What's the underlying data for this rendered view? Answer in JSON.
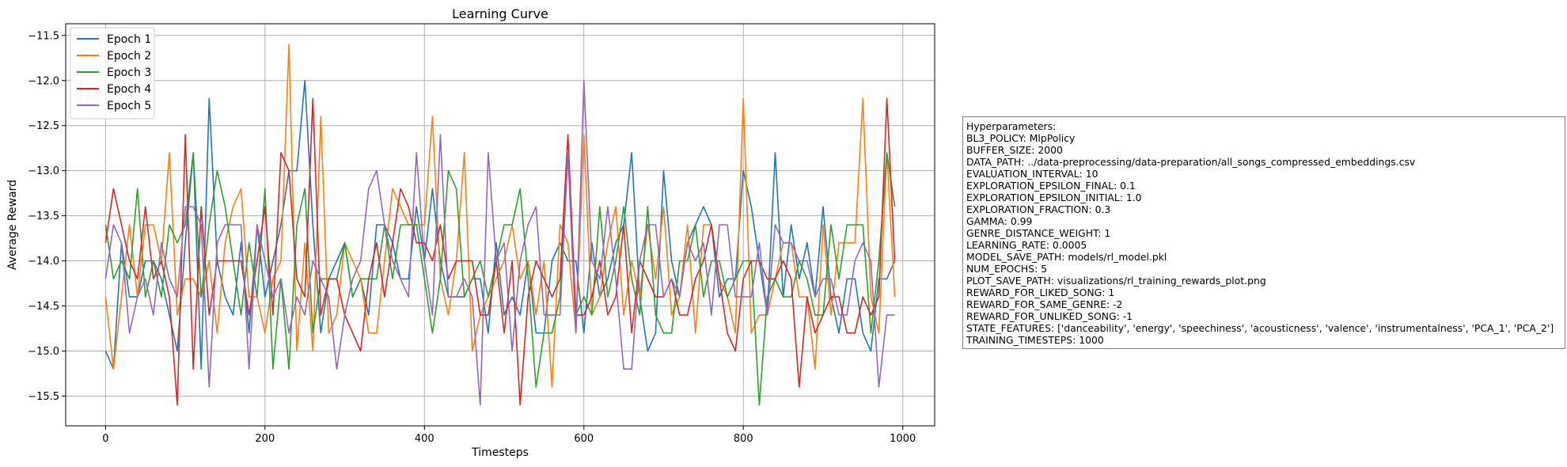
{
  "chart_data": {
    "type": "line",
    "title": "Learning Curve",
    "xlabel": "Timesteps",
    "ylabel": "Average Reward",
    "xlim": [
      -50,
      1040
    ],
    "ylim": [
      -15.83,
      -11.37
    ],
    "xticks": [
      0,
      200,
      400,
      600,
      800,
      1000
    ],
    "yticks": [
      -15.5,
      -15.0,
      -14.5,
      -14.0,
      -13.5,
      -13.0,
      -12.5,
      -12.0,
      -11.5
    ],
    "xtick_labels": [
      "0",
      "200",
      "400",
      "600",
      "800",
      "1000"
    ],
    "ytick_labels": [
      "−15.5",
      "−15.0",
      "−14.5",
      "−14.0",
      "−13.5",
      "−13.0",
      "−12.5",
      "−12.0",
      "−11.5"
    ],
    "grid": true,
    "legend_position": "top-left",
    "x": [
      0,
      10,
      20,
      30,
      40,
      50,
      60,
      70,
      80,
      90,
      100,
      110,
      120,
      130,
      140,
      150,
      160,
      170,
      180,
      190,
      200,
      210,
      220,
      230,
      240,
      250,
      260,
      270,
      280,
      290,
      300,
      310,
      320,
      330,
      340,
      350,
      360,
      370,
      380,
      390,
      400,
      410,
      420,
      430,
      440,
      450,
      460,
      470,
      480,
      490,
      500,
      510,
      520,
      530,
      540,
      550,
      560,
      570,
      580,
      590,
      600,
      610,
      620,
      630,
      640,
      650,
      660,
      670,
      680,
      690,
      700,
      710,
      720,
      730,
      740,
      750,
      760,
      770,
      780,
      790,
      800,
      810,
      820,
      830,
      840,
      850,
      860,
      870,
      880,
      890,
      900,
      910,
      920,
      930,
      940,
      950,
      960,
      970,
      980,
      990
    ],
    "series": [
      {
        "name": "Epoch 1",
        "color": "#1f77b4",
        "values": [
          -15.0,
          -15.2,
          -13.8,
          -14.4,
          -14.4,
          -14.0,
          -14.0,
          -14.2,
          -14.6,
          -15.0,
          -13.8,
          -12.8,
          -15.2,
          -12.2,
          -14.0,
          -14.4,
          -14.6,
          -13.8,
          -14.8,
          -13.6,
          -14.4,
          -14.0,
          -13.6,
          -13.0,
          -13.0,
          -12.0,
          -13.6,
          -14.8,
          -14.2,
          -14.0,
          -13.8,
          -14.4,
          -14.2,
          -14.6,
          -13.6,
          -13.6,
          -13.8,
          -14.2,
          -14.2,
          -13.4,
          -14.0,
          -13.2,
          -14.0,
          -14.4,
          -14.4,
          -14.4,
          -14.2,
          -14.2,
          -14.8,
          -13.8,
          -14.6,
          -14.4,
          -14.6,
          -14.0,
          -14.8,
          -14.8,
          -14.0,
          -13.8,
          -14.0,
          -14.0,
          -14.8,
          -13.8,
          -14.4,
          -14.2,
          -13.8,
          -13.6,
          -12.8,
          -14.4,
          -15.0,
          -14.8,
          -13.0,
          -14.0,
          -14.4,
          -13.8,
          -13.6,
          -13.4,
          -13.6,
          -14.4,
          -14.2,
          -14.2,
          -13.0,
          -13.4,
          -14.0,
          -14.6,
          -12.8,
          -14.4,
          -13.6,
          -14.2,
          -13.8,
          -14.4,
          -13.4,
          -14.4,
          -14.8,
          -14.2,
          -14.2,
          -14.8,
          -15.0,
          -14.2,
          -14.2,
          -14.0
        ]
      },
      {
        "name": "Epoch 2",
        "color": "#ff7f0e",
        "values": [
          -14.4,
          -15.2,
          -14.4,
          -13.6,
          -14.4,
          -13.6,
          -13.6,
          -14.0,
          -12.8,
          -14.6,
          -14.2,
          -14.2,
          -14.4,
          -14.0,
          -14.8,
          -13.8,
          -13.4,
          -13.2,
          -14.4,
          -14.4,
          -14.8,
          -14.2,
          -14.0,
          -11.6,
          -15.0,
          -13.8,
          -15.0,
          -12.4,
          -14.8,
          -14.6,
          -13.8,
          -14.0,
          -14.2,
          -14.8,
          -14.8,
          -14.0,
          -13.2,
          -13.4,
          -13.6,
          -13.6,
          -13.6,
          -12.4,
          -14.2,
          -14.6,
          -14.0,
          -12.8,
          -15.0,
          -14.6,
          -14.4,
          -14.2,
          -14.0,
          -13.6,
          -14.2,
          -14.0,
          -14.6,
          -14.0,
          -15.4,
          -13.6,
          -13.8,
          -14.8,
          -12.6,
          -14.6,
          -14.4,
          -13.8,
          -13.4,
          -14.6,
          -14.0,
          -14.4,
          -13.6,
          -14.2,
          -13.4,
          -14.6,
          -14.4,
          -13.6,
          -14.8,
          -13.6,
          -13.6,
          -14.2,
          -14.4,
          -14.8,
          -12.2,
          -14.8,
          -14.6,
          -14.6,
          -14.2,
          -13.8,
          -13.8,
          -14.4,
          -14.4,
          -15.2,
          -13.6,
          -14.6,
          -13.8,
          -13.8,
          -13.8,
          -12.2,
          -14.4,
          -14.8,
          -12.8,
          -14.4
        ]
      },
      {
        "name": "Epoch 3",
        "color": "#2ca02c",
        "values": [
          -13.6,
          -14.2,
          -14.0,
          -14.2,
          -13.2,
          -14.4,
          -14.0,
          -14.4,
          -13.6,
          -13.8,
          -13.6,
          -12.8,
          -14.4,
          -13.6,
          -13.0,
          -13.4,
          -14.0,
          -14.6,
          -13.8,
          -14.4,
          -13.2,
          -15.2,
          -14.2,
          -15.2,
          -13.6,
          -13.2,
          -14.8,
          -14.2,
          -14.2,
          -14.2,
          -13.8,
          -14.4,
          -14.2,
          -14.2,
          -14.2,
          -13.6,
          -14.2,
          -13.6,
          -13.6,
          -13.6,
          -14.2,
          -14.8,
          -14.2,
          -13.0,
          -13.2,
          -14.4,
          -14.2,
          -14.0,
          -14.4,
          -14.0,
          -13.6,
          -13.6,
          -13.2,
          -14.2,
          -15.4,
          -14.8,
          -14.8,
          -14.4,
          -12.8,
          -14.6,
          -14.4,
          -14.6,
          -13.4,
          -14.4,
          -14.0,
          -13.4,
          -14.2,
          -14.6,
          -13.4,
          -14.6,
          -14.8,
          -14.8,
          -14.0,
          -14.0,
          -13.6,
          -14.4,
          -14.0,
          -14.0,
          -14.4,
          -14.2,
          -14.0,
          -14.0,
          -15.6,
          -14.4,
          -14.2,
          -14.4,
          -14.4,
          -14.0,
          -14.2,
          -14.6,
          -14.6,
          -13.6,
          -14.2,
          -13.6,
          -13.6,
          -13.6,
          -14.8,
          -14.0,
          -12.8,
          -13.4
        ]
      },
      {
        "name": "Epoch 4",
        "color": "#d62728",
        "values": [
          -13.8,
          -13.2,
          -13.6,
          -14.0,
          -14.2,
          -13.4,
          -14.2,
          -14.0,
          -14.4,
          -15.6,
          -12.6,
          -15.2,
          -13.4,
          -14.6,
          -14.0,
          -14.0,
          -14.0,
          -14.0,
          -14.6,
          -14.0,
          -13.4,
          -14.6,
          -12.8,
          -13.0,
          -14.2,
          -14.4,
          -12.2,
          -14.6,
          -14.2,
          -14.2,
          -14.6,
          -14.8,
          -15.0,
          -14.2,
          -13.8,
          -14.4,
          -13.8,
          -13.2,
          -13.4,
          -13.8,
          -13.8,
          -14.0,
          -13.6,
          -14.2,
          -14.0,
          -14.0,
          -14.0,
          -14.6,
          -14.6,
          -14.0,
          -14.8,
          -14.0,
          -15.6,
          -14.4,
          -14.0,
          -14.2,
          -14.4,
          -14.2,
          -12.6,
          -14.6,
          -14.6,
          -14.4,
          -14.0,
          -14.6,
          -14.4,
          -13.6,
          -14.8,
          -14.0,
          -14.2,
          -14.4,
          -14.4,
          -14.2,
          -14.6,
          -14.6,
          -14.2,
          -14.0,
          -13.6,
          -14.2,
          -14.8,
          -15.0,
          -14.2,
          -14.0,
          -14.0,
          -14.2,
          -14.2,
          -14.0,
          -14.2,
          -15.4,
          -14.4,
          -14.8,
          -14.6,
          -14.4,
          -14.4,
          -14.8,
          -14.8,
          -14.4,
          -14.6,
          -14.4,
          -12.2,
          -14.0
        ]
      },
      {
        "name": "Epoch 5",
        "color": "#9467bd",
        "values": [
          -14.2,
          -13.6,
          -13.8,
          -14.8,
          -14.4,
          -14.2,
          -14.6,
          -13.8,
          -14.2,
          -14.4,
          -13.4,
          -13.4,
          -13.6,
          -15.4,
          -13.8,
          -13.6,
          -13.6,
          -13.6,
          -15.2,
          -13.6,
          -14.0,
          -14.4,
          -14.2,
          -14.8,
          -14.4,
          -14.6,
          -14.0,
          -14.2,
          -14.4,
          -15.2,
          -14.6,
          -14.2,
          -14.0,
          -13.2,
          -13.0,
          -13.6,
          -14.0,
          -14.2,
          -14.4,
          -12.8,
          -14.0,
          -14.6,
          -12.6,
          -14.4,
          -14.4,
          -14.2,
          -14.4,
          -15.6,
          -12.8,
          -14.0,
          -13.8,
          -15.0,
          -14.0,
          -13.6,
          -13.4,
          -14.6,
          -14.6,
          -14.6,
          -12.8,
          -14.8,
          -12.0,
          -14.0,
          -14.2,
          -13.4,
          -14.2,
          -15.2,
          -15.2,
          -14.0,
          -13.6,
          -13.6,
          -14.4,
          -14.2,
          -14.4,
          -13.8,
          -14.0,
          -13.8,
          -14.6,
          -13.6,
          -13.6,
          -14.4,
          -14.4,
          -14.4,
          -13.8,
          -14.6,
          -13.6,
          -13.8,
          -13.8,
          -14.0,
          -14.0,
          -14.4,
          -14.2,
          -14.2,
          -14.6,
          -14.6,
          -14.0,
          -13.8,
          -14.0,
          -15.4,
          -14.6,
          -14.6
        ]
      }
    ]
  },
  "hyperparameters": {
    "lines": [
      "Hyperparameters:",
      "BL3_POLICY: MlpPolicy",
      "BUFFER_SIZE: 2000",
      "DATA_PATH: ../data-preprocessing/data-preparation/all_songs_compressed_embeddings.csv",
      "EVALUATION_INTERVAL: 10",
      "EXPLORATION_EPSILON_FINAL: 0.1",
      "EXPLORATION_EPSILON_INITIAL: 1.0",
      "EXPLORATION_FRACTION: 0.3",
      "GAMMA: 0.99",
      "GENRE_DISTANCE_WEIGHT: 1",
      "LEARNING_RATE: 0.0005",
      "MODEL_SAVE_PATH: models/rl_model.pkl",
      "NUM_EPOCHS: 5",
      "PLOT_SAVE_PATH: visualizations/rl_training_rewards_plot.png",
      "REWARD_FOR_LIKED_SONG: 1",
      "REWARD_FOR_SAME_GENRE: -2",
      "REWARD_FOR_UNLIKED_SONG: -1",
      "STATE_FEATURES: ['danceability', 'energy', 'speechiness', 'acousticness', 'valence', 'instrumentalness', 'PCA_1', 'PCA_2']",
      "TRAINING_TIMESTEPS: 1000"
    ]
  }
}
